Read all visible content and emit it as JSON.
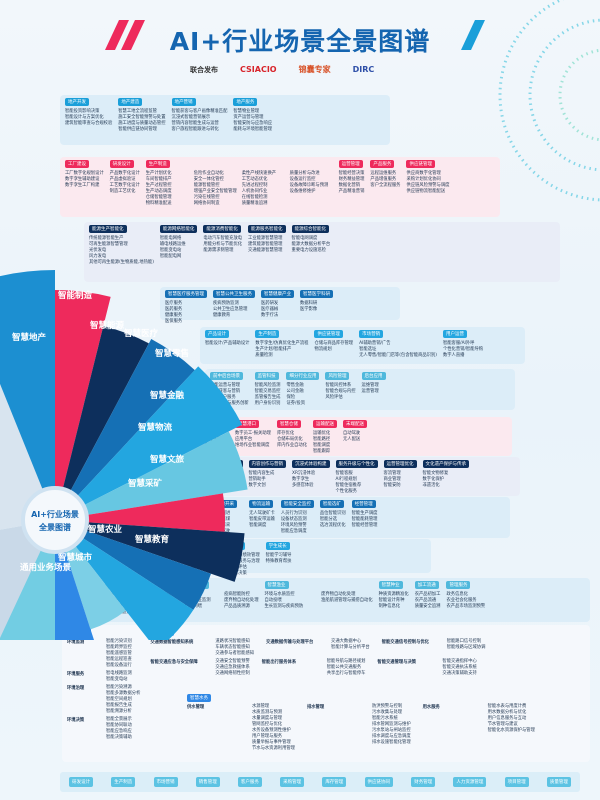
{
  "header": {
    "title": "AI+行业场景全景图谱",
    "publish_label": "联合发布",
    "logos": [
      "CSIACIO",
      "锦囊专家",
      "DIRC"
    ],
    "colors": {
      "red": "#ee2a5c",
      "blue": "#1a9fd9",
      "title": "#1565b0"
    }
  },
  "hub": {
    "line1": "AI+行业场景",
    "line2": "全景图谱"
  },
  "fan": [
    {
      "label": "智慧地产",
      "color": "#1c8fd1"
    },
    {
      "label": "智能制造",
      "color": "#ee2a5c"
    },
    {
      "label": "智慧能源",
      "color": "#0d2f5c"
    },
    {
      "label": "智慧医疗",
      "color": "#1570b5"
    },
    {
      "label": "智慧零售",
      "color": "#23a6e0"
    },
    {
      "label": "智慧金融",
      "color": "#67c7e2"
    },
    {
      "label": "智慧物流",
      "color": "#ee2a5c"
    },
    {
      "label": "智慧文旅",
      "color": "#0d2f5c"
    },
    {
      "label": "智慧采矿",
      "color": "#1570b5"
    },
    {
      "label": "智慧教育",
      "color": "#23a6e0"
    },
    {
      "label": "智慧农业",
      "color": "#7ccfe6"
    },
    {
      "label": "智慧城市",
      "color": "#2f88e6"
    },
    {
      "label": "通用业务场景",
      "color": "#72cde3"
    }
  ],
  "panels": [
    {
      "id": "realestate",
      "style": "p-blue",
      "hc": "#1a9fd9",
      "groups": [
        {
          "title": "地产开发",
          "items": [
            "智能投资影响决策",
            "智能设计与方案优化",
            "建筑智能审查与合规校验"
          ]
        },
        {
          "title": "地产建造",
          "items": [
            "智慧工地全流程监管",
            "施工安全智能预警与处置",
            "施工进度与质量动态管控",
            "智能供应链协同管理"
          ]
        },
        {
          "title": "地产营销",
          "items": [
            "智能获客与客户画像精准匹配",
            "沉浸式智能营销展示",
            "营销内容智能生成与运营",
            "客户旅程智能跟进与转化"
          ]
        },
        {
          "title": "地产服务",
          "items": [
            "智慧物业管理",
            "资产运营与管理",
            "智能安防与应急响应",
            "能耗与环境智能管理"
          ]
        }
      ]
    },
    {
      "id": "manufacturing",
      "style": "p-pink",
      "hc": "#ee2a5c",
      "groups": [
        {
          "title": "工厂建设",
          "items": [
            "工厂数字化规划设计",
            "数字孪生辅助建设",
            "数字孪生工厂构建"
          ]
        },
        {
          "title": "研发设计",
          "items": [
            "产品数字化设计",
            "产品虚拟验证",
            "工艺数字化设计",
            "制造工艺优化"
          ]
        },
        {
          "title": "生产制造",
          "cols": 4,
          "items": [
            "生产计划优化",
            "车间智能排产",
            "生产过程管控",
            "生产动态调度",
            "仓储智能管理",
            "物料精准配送",
            "危险作业自动化",
            "安全一体化管控",
            "能源智能管控",
            "增强产业安全智能管理",
            "污染在线管控",
            "网络协同制造",
            "柔性产线快速换产",
            "工艺动态优化",
            "先进过程控制",
            "人机协同作业",
            "在线智能检测",
            "质量精准追溯",
            "质量分析与改进",
            "设备运行监控",
            "设备故障诊断与预测",
            "设备维修维护"
          ]
        },
        {
          "title": "运营管理",
          "items": [
            "智能经营决策",
            "财务精益管理",
            "数据化营销",
            "产品精准营销"
          ]
        },
        {
          "title": "产品服务",
          "items": [
            "远程运维服务",
            "产品增值服务",
            "客户全流程服务"
          ]
        },
        {
          "title": "供应链管理",
          "items": [
            "供应商数字化管理",
            "采购计划优化协同",
            "供应链风险预警与调度",
            "供应链物流智能配送"
          ]
        }
      ]
    },
    {
      "id": "energy",
      "style": "p-lav",
      "hc": "#0d2f5c",
      "groups": [
        {
          "title": "能源生产智能化",
          "items": [
            "传统能源智能生产",
            "可再生能源智慧管理",
            "光伏发电",
            "风力发电",
            "其他可再生能源(生物质能,地热能)"
          ]
        },
        {
          "title": "能源网络智能化",
          "items": [
            "智能电网络",
            "输电线路运维",
            "智能变电站",
            "智能配电网"
          ]
        },
        {
          "title": "能源消费智能化",
          "items": [
            "电动汽车智能充放电",
            "用能分析与节能优化",
            "能源需求侧管理"
          ]
        },
        {
          "title": "能源服务智能化",
          "items": [
            "工业能源智慧管理",
            "建筑能源智能管理",
            "交通能源智慧管理"
          ]
        },
        {
          "title": "能源综合智能化",
          "items": [
            "智能电网调度",
            "能源大数据分析平台",
            "重要电力设施巡检"
          ]
        }
      ]
    },
    {
      "id": "medical",
      "style": "p-blue",
      "hc": "#1570b5",
      "groups": [
        {
          "title": "智慧医疗服务管理",
          "items": [
            "医疗服务",
            "医药服务",
            "健康服务",
            "医保服务"
          ]
        },
        {
          "title": "智慧公共卫生服务",
          "items": [
            "疾病预防监测",
            "公共卫生应急管理",
            "健康教育"
          ]
        },
        {
          "title": "智慧健康产业",
          "items": [
            "医药研发",
            "医疗器械",
            "数字疗法"
          ]
        },
        {
          "title": "智慧医学科研",
          "items": [
            "数据科研",
            "医学影像"
          ]
        }
      ]
    },
    {
      "id": "retail",
      "style": "p-blue",
      "hc": "#23a6e0",
      "groups": [
        {
          "title": "产品设计",
          "items": [
            "智能设计/产品辅助设计"
          ]
        },
        {
          "title": "生产制造",
          "items": [
            "数字孪生/仿真优化生产流程",
            "生产计划/智能排产",
            "质量检测"
          ]
        },
        {
          "title": "供应链管理",
          "items": [
            "仓储与商品库存管理",
            "物流规划"
          ]
        },
        {
          "title": "市场营销",
          "items": [
            "AI辅助营销/广告",
            "智能选址",
            "无人零售/智能门店等(包含智能商品识别)"
          ]
        },
        {
          "title": "用户运营",
          "items": [
            "智能客服/AI外呼",
            "个性化营销/智能导购",
            "数字人直播"
          ]
        }
      ]
    },
    {
      "id": "finance",
      "style": "p-blue",
      "hc": "#4fb8dc",
      "groups": [
        {
          "title": "前中后台场景",
          "items": [
            "智能运营与管理",
            "智能获客与营销",
            "智能客户服务",
            "智能产品与服务创新"
          ]
        },
        {
          "title": "监管科技",
          "items": [
            "智能风险监测",
            "智能交易监控",
            "监管报告生成",
            "用户身份识别"
          ]
        },
        {
          "title": "细分行业应用",
          "items": [
            "零售金融",
            "公司金融",
            "保险",
            "证券/投资"
          ]
        },
        {
          "title": "风险管理",
          "items": [
            "智能风控体系",
            "智能合规与内控",
            "风险评估"
          ]
        },
        {
          "title": "后台应用",
          "items": [
            "运维管理",
            "运营管理"
          ]
        }
      ]
    },
    {
      "id": "logistics",
      "style": "p-pink",
      "hc": "#ee2a5c",
      "groups": [
        {
          "title": "智慧园区",
          "items": [
            "运营调度",
            "园区安防",
            "智能闸口",
            "安全管理"
          ]
        },
        {
          "title": "智慧港口",
          "items": [
            "数字员工-报关助理",
            "应用平台",
            "堆场作业智能调度"
          ]
        },
        {
          "title": "智慧仓储",
          "items": [
            "库存优化",
            "仓储布局优化",
            "库内作业自动化"
          ]
        },
        {
          "title": "运输配送",
          "items": [
            "运输优化",
            "智能路径",
            "智能调度",
            "智能跟踪"
          ]
        },
        {
          "title": "末端配送",
          "items": [
            "自动驾驶",
            "无人配送"
          ]
        }
      ]
    },
    {
      "id": "tourism",
      "style": "p-lav",
      "hc": "#0d2f5c",
      "groups": [
        {
          "title": "智能导览与讲解",
          "items": [
            "多模态导览",
            "个性化讲解",
            "数字人导览"
          ]
        },
        {
          "title": "内容创作与营销",
          "items": [
            "智能内容生成",
            "营销助手",
            "数字文创"
          ]
        },
        {
          "title": "沉浸式体验构建",
          "items": [
            "XR沉浸体验",
            "数字孪生",
            "多感官体验"
          ]
        },
        {
          "title": "服务升级与个性化",
          "items": [
            "智能客服",
            "AI行程规划",
            "智能住宿推荐",
            "个性化服务"
          ]
        },
        {
          "title": "运营管理优化",
          "items": [
            "客流管理",
            "商业管理",
            "智能安防"
          ]
        },
        {
          "title": "文化遗产保护与传承",
          "items": [
            "智能文物修复",
            "数字化保护",
            "非遗活化"
          ]
        }
      ]
    },
    {
      "id": "mining",
      "style": "p-blue",
      "hc": "#1570b5",
      "groups": [
        {
          "title": "资源勘探",
          "items": [
            "物探建模",
            "矿体预测",
            "储量估算"
          ]
        },
        {
          "title": "资源开采",
          "items": [
            "智能掘进",
            "智能采煤",
            "智能综采",
            "无人驾驶",
            "智能辅助",
            "决策规划与安全"
          ]
        },
        {
          "title": "物流运输",
          "items": [
            "无人驾驶矿卡",
            "智能皮带运输",
            "智能调度"
          ]
        },
        {
          "title": "智能安全监控",
          "items": [
            "人员行为识别",
            "设备状态监测",
            "环境风险预警",
            "智能应急调度"
          ]
        },
        {
          "title": "智能选矿",
          "items": [
            "品位智能识别",
            "智能分选",
            "选冶流程优化"
          ]
        },
        {
          "title": "经营管理",
          "items": [
            "智能生产调度",
            "智能能耗管理",
            "智能经营管理"
          ]
        }
      ]
    },
    {
      "id": "education",
      "style": "p-blue",
      "hc": "#23a6e0",
      "groups": [
        {
          "title": "教师辅助",
          "items": [
            "课前",
            "课中",
            "课后"
          ]
        },
        {
          "title": "教育评测",
          "items": [
            "智能教务与绩效管理",
            "智能校园服务与治理",
            "智慧教育评估",
            "智慧教育决策"
          ]
        },
        {
          "title": "学生成长",
          "items": [
            "智能学习辅导",
            "特殊教育帮扶"
          ]
        }
      ]
    },
    {
      "id": "agriculture",
      "style": "p-blue",
      "hc": "#4fb8dc",
      "groups": [
        {
          "title": "智慧种植",
          "cols": 2,
          "items": [
            "精细种植",
            "精准施肥",
            "环境监控",
            "作物生长监测",
            "病虫害监测与防控",
            "水肥智能调控",
            "精准收获"
          ]
        },
        {
          "title": "智慧畜牧",
          "cols": 2,
          "items": [
            "环境监控",
            "动物体征监测",
            "精准饲喂",
            "疫病智能防控",
            "废弃物自动化处理",
            "产品品质溯源"
          ]
        },
        {
          "title": "智慧渔业",
          "cols": 2,
          "items": [
            "环境与水质监控",
            "自动投喂",
            "生长监测与疾病预防",
            "废弃物自动化处理",
            "渔船航道管理与捕捞自动化"
          ]
        },
        {
          "title": "智慧种业",
          "items": [
            "种质资源精准化",
            "智能设计育种",
            "制种信息化"
          ]
        },
        {
          "title": "加工流通",
          "items": [
            "农产品初加工",
            "农产品流通",
            "质量安全追溯"
          ]
        },
        {
          "title": "管理服务",
          "items": [
            "政务信息化",
            "农业社会化服务",
            "农产品市场监测预警"
          ]
        }
      ]
    }
  ],
  "city": {
    "groups": [
      {
        "title": "智慧环保",
        "subs": [
          {
            "label": "环境监测",
            "items": [
              "智能污染识别",
              "智能跨界监控",
              "智能遥感监管",
              "智能远程巡查",
              "智能设备运行"
            ]
          },
          {
            "label": "环境服务",
            "items": [
              "智电线路监测",
              "智能变电站"
            ]
          },
          {
            "label": "环境治理",
            "items": [
              "智能污染溯源",
              "智能多源数据分析",
              "智能空间规划",
              "智能报告生成",
              "智能溯源分析"
            ]
          },
          {
            "label": "环境决策",
            "items": [
              "智能全景展示",
              "智能协同联动",
              "智能应急响应",
              "智能决策辅助"
            ]
          }
        ]
      },
      {
        "title": "智慧交通",
        "subs": [
          {
            "label": "交通数据智能感知系统",
            "items": [
              "道路状况智能感知",
              "车辆状态智能感知",
              "交通参与者智能感知"
            ]
          },
          {
            "label": "交通数据传输与处理平台",
            "items": [
              "交通大数据中心",
              "智能计算与分析平台"
            ]
          },
          {
            "label": "智能交通信号控制与优化",
            "items": [
              "智能路口信号控制",
              "智能线路与区域协调"
            ]
          },
          {
            "label": "智能交通应急与安全保障",
            "items": [
              "交通安全智能预警",
              "交通应急救援体系",
              "交通网络韧性控制"
            ]
          },
          {
            "label": "智能出行服务体系",
            "items": [
              "智能导航与路径规划",
              "智能公共交通服务",
              "共享出行与智能停车"
            ]
          },
          {
            "label": "智能交通管理与决策",
            "items": [
              "智能交通指挥中心",
              "智能交通执法系统",
              "交通决策辅助支持"
            ]
          }
        ]
      },
      {
        "title": "智慧水务",
        "subs": [
          {
            "label": "供水管理",
            "items": [
              "水源管理",
              "水质监测与预测",
              "水量调度与管理",
              "管网监控与优化",
              "水务设备预测性维护",
              "用户管理与服务",
              "质量举报与事件管理",
              "节水与水资源利用管理"
            ]
          },
          {
            "label": "排水管理",
            "items": [
              "防洪预警与控制",
              "污水收集与处理",
              "智能污水系统",
              "排水管网监测与维护",
              "污水泵站与闸站监控",
              "排水调度与应急调度",
              "排水设施智能化管理"
            ]
          },
          {
            "label": "用水服务",
            "items": [
              "智能水表与用度计费",
              "用水数据分析与优化",
              "用户信息服务与互动",
              "节水管理与建议",
              "智能化水资源保护与管理"
            ]
          }
        ]
      }
    ]
  },
  "general_tags": [
    "研发设计",
    "生产制造",
    "市场营销",
    "销售管理",
    "客户服务",
    "采购管理",
    "库存管理",
    "供应链协同",
    "财务管理",
    "人力资源管理",
    "项目管理",
    "质量管理"
  ]
}
